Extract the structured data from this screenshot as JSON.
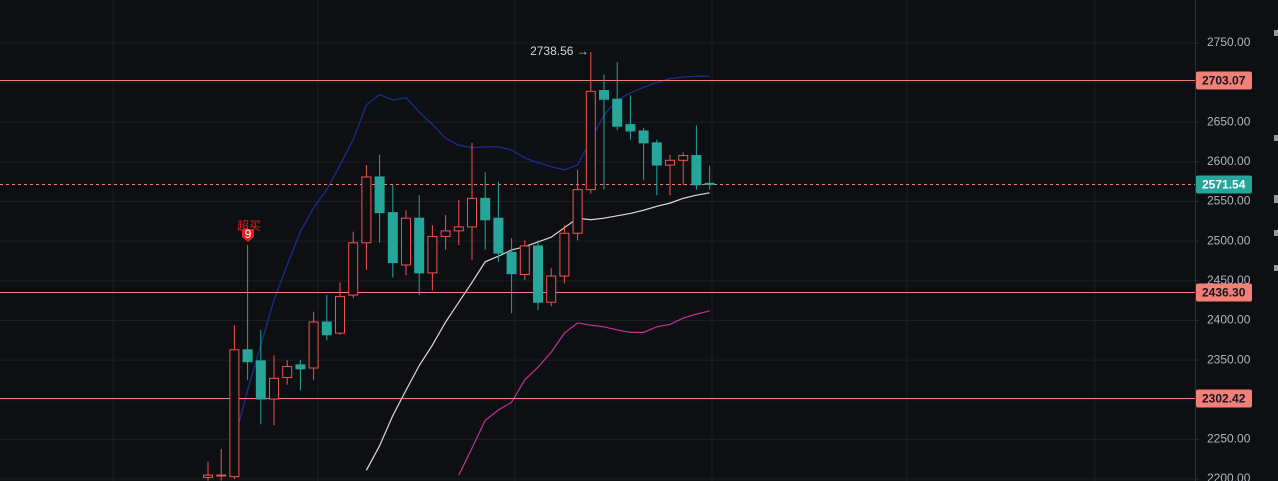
{
  "chart_data": {
    "type": "candlestick",
    "open": [
      2202,
      2204,
      2203,
      2363,
      2349,
      2301,
      2328,
      2344,
      2340,
      2398,
      2384,
      2432,
      2498,
      2581,
      2536,
      2470,
      2529,
      2460,
      2506,
      2513,
      2518,
      2554,
      2529,
      2486,
      2458,
      2494,
      2423,
      2456,
      2510,
      2565,
      2690,
      2679,
      2647,
      2639,
      2624,
      2596,
      2602,
      2608,
      2573
    ],
    "high": [
      2222,
      2238,
      2394,
      2495,
      2388,
      2356,
      2350,
      2350,
      2411,
      2432,
      2448,
      2512,
      2596,
      2609,
      2571,
      2539,
      2558,
      2520,
      2533,
      2552,
      2624,
      2587,
      2575,
      2504,
      2501,
      2501,
      2466,
      2520,
      2590,
      2738.56,
      2710,
      2726,
      2684,
      2643,
      2628,
      2609,
      2612,
      2646,
      2595
    ],
    "low": [
      2198,
      2198,
      2200,
      2325,
      2269,
      2268,
      2319,
      2312,
      2325,
      2375,
      2382,
      2428,
      2464,
      2498,
      2454,
      2457,
      2432,
      2438,
      2489,
      2495,
      2476,
      2489,
      2474,
      2409,
      2451,
      2413,
      2418,
      2447,
      2501,
      2560,
      2565,
      2640,
      2628,
      2577,
      2558,
      2558,
      2571,
      2565,
      2565
    ],
    "close": [
      2205,
      2205,
      2363,
      2348,
      2301,
      2327,
      2342,
      2339,
      2398,
      2382,
      2430,
      2498,
      2581,
      2536,
      2473,
      2529,
      2460,
      2506,
      2513,
      2518,
      2554,
      2527,
      2485,
      2459,
      2494,
      2423,
      2456,
      2510,
      2565,
      2689,
      2679,
      2645,
      2639,
      2624,
      2596,
      2602,
      2608,
      2571,
      2571.54
    ],
    "up_color": "#ef5350",
    "down_color": "#26a69a",
    "series": [
      {
        "color": "#1c2e99",
        "values": [
          null,
          null,
          2249,
          2312,
          2369,
          2426,
          2470,
          2512,
          2542,
          2565,
          2596,
          2628,
          2672,
          2685,
          2678,
          2681,
          2663,
          2647,
          2630,
          2621,
          2618,
          2619,
          2619,
          2615,
          2605,
          2599,
          2594,
          2590,
          2596,
          2628,
          2659,
          2678,
          2687,
          2694,
          2700,
          2705,
          2707,
          2708,
          2708
        ]
      },
      {
        "color": "#d9d9d9",
        "values": [
          null,
          null,
          null,
          null,
          null,
          null,
          null,
          null,
          null,
          null,
          null,
          null,
          2211,
          2242,
          2280,
          2312,
          2343,
          2369,
          2398,
          2423,
          2448,
          2474,
          2481,
          2489,
          2493,
          2499,
          2505,
          2517,
          2529,
          2527,
          2529,
          2532,
          2535,
          2539,
          2544,
          2548,
          2554,
          2558,
          2561
        ]
      },
      {
        "color": "#c2329a",
        "values": [
          null,
          null,
          null,
          null,
          null,
          null,
          null,
          null,
          null,
          null,
          null,
          null,
          null,
          null,
          null,
          null,
          null,
          null,
          null,
          2205,
          2239,
          2274,
          2287,
          2297,
          2325,
          2341,
          2360,
          2384,
          2397,
          2394,
          2392,
          2388,
          2385,
          2385,
          2392,
          2395,
          2403,
          2408,
          2412
        ]
      }
    ],
    "ylim": [
      2197.5,
      2804.2
    ],
    "yticks": [
      {
        "value": 2200,
        "label": "2200.00"
      },
      {
        "value": 2250,
        "label": "2250.00"
      },
      {
        "value": 2300,
        "label": "2300.00"
      },
      {
        "value": 2350,
        "label": "2350.00"
      },
      {
        "value": 2400,
        "label": "2400.00"
      },
      {
        "value": 2450,
        "label": "2450.00"
      },
      {
        "value": 2500,
        "label": "2500.00"
      },
      {
        "value": 2550,
        "label": "2550.00"
      },
      {
        "value": 2600,
        "label": "2600.00"
      },
      {
        "value": 2650,
        "label": "2650.00"
      },
      {
        "value": 2700,
        "label": "2700.00"
      },
      {
        "value": 2750,
        "label": "2750.00"
      }
    ],
    "grid": true,
    "levels": [
      {
        "value": 2703.07,
        "label": "2703.07"
      },
      {
        "value": 2436.3,
        "label": "2436.30"
      },
      {
        "value": 2302.42,
        "label": "2302.42"
      }
    ],
    "level_color": "#f28076",
    "last_price": {
      "value": 2571.54,
      "label": "2571.54"
    },
    "high_annotation": "2738.56 →",
    "signal": {
      "text": "超买",
      "count": 9
    }
  }
}
